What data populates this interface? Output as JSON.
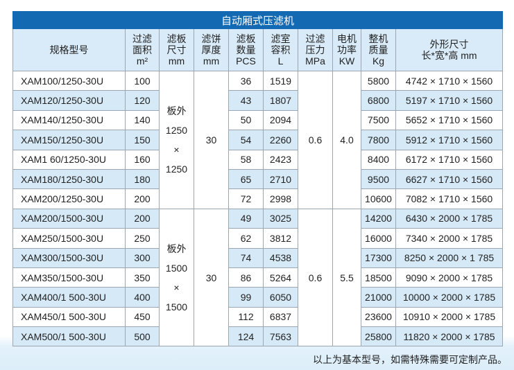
{
  "title": "自动厢式压滤机",
  "headers": [
    "规格型号",
    "过滤\n面积\nm²",
    "滤板\n尺寸\nmm",
    "滤饼\n厚度\nmm",
    "滤板\n数量\nPCS",
    "滤室\n容积\nL",
    "过滤\n压力\nMPa",
    "电机\n功率\nKW",
    "整机\n质量\nKg",
    "外形尺寸\n长*宽*高 mm"
  ],
  "groups": [
    {
      "plate": [
        "板外",
        "1250",
        "×",
        "1250"
      ],
      "thickness": "30",
      "pressure": "0.6",
      "power": "4.0",
      "rows": [
        [
          "XAM100/1250-30U",
          "100",
          "36",
          "1519",
          "5800",
          "4742 × 1710 × 1560"
        ],
        [
          "XAM120/1250-30U",
          "120",
          "43",
          "1807",
          "6800",
          "5197  × 1710 × 1560"
        ],
        [
          "XAM140/1250-30U",
          "140",
          "50",
          "2094",
          "7500",
          "5652 × 1710 × 1560"
        ],
        [
          "XAM150/1250-30U",
          "150",
          "54",
          "2260",
          "7800",
          "5912 × 1710 × 1560"
        ],
        [
          "XAM1 60/1250-30U",
          "160",
          "58",
          "2423",
          "8400",
          "6172 × 1710 × 1560"
        ],
        [
          "XAM180/1250-30U",
          "180",
          "65",
          "2710",
          "9500",
          "6627 × 1710 × 1560"
        ],
        [
          "XAM200/1250-30U",
          "200",
          "72",
          "2998",
          "10600",
          "7082 × 1710 × 1560"
        ]
      ]
    },
    {
      "plate": [
        "板外",
        "1500",
        "×",
        "1500"
      ],
      "thickness": "30",
      "pressure": "0.6",
      "power": "5.5",
      "rows": [
        [
          "XAM200/1500-30U",
          "200",
          "49",
          "3025",
          "14200",
          "6430 × 2000 × 1785"
        ],
        [
          "XAM250/1500-30U",
          "250",
          "62",
          "3812",
          "16000",
          "7340 × 2000 × 1785"
        ],
        [
          "XAM300/1500-30U",
          "300",
          "74",
          "4538",
          "17300",
          "8250 ×  2000 × 1 785"
        ],
        [
          "XAM350/1500-30U",
          "350",
          "86",
          "5264",
          "18500",
          "9090 × 2000 ×  1785"
        ],
        [
          "XAM400/1 500-30U",
          "400",
          "99",
          "6050",
          "21000",
          "10000 × 2000 × 1785"
        ],
        [
          "XAM450/1 500-30U",
          "450",
          "112",
          "6837",
          "23600",
          "10910 × 2000 × 1785"
        ],
        [
          "XAM500/1 500-30U",
          "500",
          "124",
          "7563",
          "25800",
          "11820 × 2000 × 1785"
        ]
      ]
    }
  ],
  "footnote": "以上为基本型号，如需特殊需要可定制产品。"
}
